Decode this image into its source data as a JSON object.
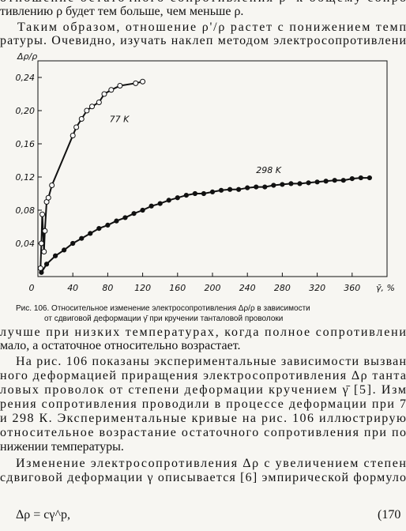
{
  "top_lines": [
    "отношение остаточного сопротивления ρ' к общему сопро",
    "тивлению ρ будет тем больше, чем меньше ρ.",
    "Таким образом, отношение ρ'/ρ растет с понижением темп",
    "ратуры. Очевидно, изучать наклеп методом электросопротивлени"
  ],
  "chart_data": {
    "type": "scatter",
    "y_label": "Δρ/ρ",
    "x_label": "γ̄, %",
    "xlim": [
      0,
      400
    ],
    "ylim": [
      0,
      0.26
    ],
    "xticks": [
      0,
      40,
      80,
      120,
      160,
      200,
      240,
      280,
      320,
      360
    ],
    "yticks": [
      {
        "value": 0.04,
        "label": "0,04"
      },
      {
        "value": 0.08,
        "label": "0,08"
      },
      {
        "value": 0.12,
        "label": "0,12"
      },
      {
        "value": 0.16,
        "label": "0,16"
      },
      {
        "value": 0.2,
        "label": "0,20"
      },
      {
        "value": 0.24,
        "label": "0,24"
      }
    ],
    "series": [
      {
        "name": "77 K",
        "color": "#111111",
        "marker": "open",
        "x": [
          3,
          4,
          5,
          7,
          8,
          10,
          12,
          16,
          40,
          44,
          50,
          56,
          62,
          70,
          76,
          84,
          94,
          112,
          120
        ],
        "values": [
          0.01,
          0.04,
          0.075,
          0.03,
          0.055,
          0.09,
          0.095,
          0.11,
          0.17,
          0.18,
          0.19,
          0.2,
          0.205,
          0.21,
          0.22,
          0.225,
          0.23,
          0.233,
          0.235
        ]
      },
      {
        "name": "298 K",
        "color": "#111111",
        "marker": "filled",
        "x": [
          4,
          10,
          20,
          30,
          40,
          50,
          60,
          70,
          80,
          90,
          100,
          110,
          120,
          130,
          140,
          150,
          160,
          170,
          180,
          190,
          200,
          210,
          220,
          230,
          240,
          250,
          260,
          270,
          280,
          290,
          300,
          310,
          320,
          330,
          340,
          350,
          360,
          370,
          380
        ],
        "values": [
          0.005,
          0.015,
          0.025,
          0.032,
          0.04,
          0.046,
          0.052,
          0.058,
          0.062,
          0.067,
          0.071,
          0.076,
          0.08,
          0.085,
          0.088,
          0.092,
          0.095,
          0.098,
          0.1,
          0.1,
          0.102,
          0.104,
          0.105,
          0.105,
          0.107,
          0.108,
          0.108,
          0.11,
          0.111,
          0.112,
          0.112,
          0.113,
          0.114,
          0.115,
          0.116,
          0.116,
          0.118,
          0.119,
          0.119
        ]
      }
    ]
  },
  "caption": [
    "Рис. 106. Относительное изменение электросопротивления Δρ/ρ в зависимости",
    "от сдвиговой деформации γ̄ при кручении танталовой проволоки"
  ],
  "bottom_lines": [
    "лучше при низких температурах, когда полное сопротивлени",
    "мало, а остаточное относительно возрастает.",
    "На рис. 106 показаны экспериментальные зависимости вызван",
    "ного деформацией приращения электросопротивления Δρ танта",
    "ловых проволок от степени деформации кручением γ̄ [5]. Изм",
    "рения сопротивления проводили в процессе деформации при 7",
    "и 298 К. Экспериментальные кривые на рис. 106 иллюстрирую",
    "относительное возрастание остаточного сопротивления при по",
    "нижении температуры.",
    "Изменение электросопротивления Δρ с увеличением степен",
    "сдвиговой деформации γ описывается [6] эмпирической формуло"
  ],
  "formula": "Δρ = cγ^p,",
  "formula_number": "(170"
}
